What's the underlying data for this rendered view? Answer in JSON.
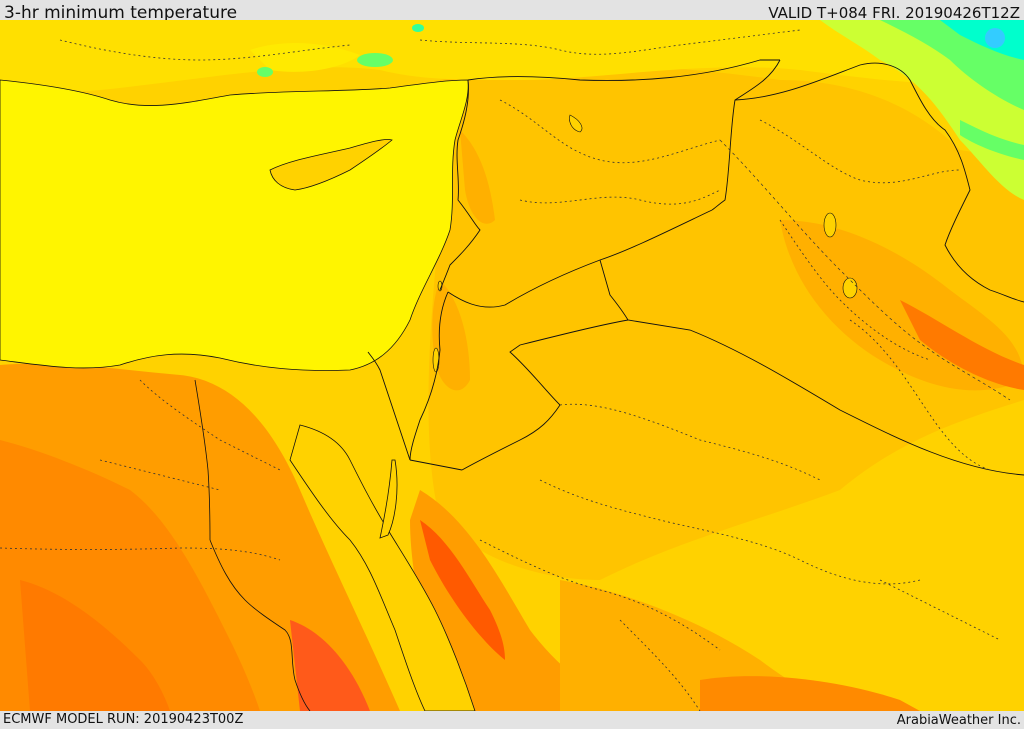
{
  "header": {
    "title": "3-hr minimum temperature",
    "valid": "VALID T+084 FRI. 20190426T12Z"
  },
  "footer": {
    "model_run": "ECMWF MODEL RUN: 20190423T00Z",
    "credit": "ArabiaWeather Inc."
  },
  "map": {
    "variable": "3-hr minimum temperature",
    "palette": {
      "sea": "#fff500",
      "cool_green": "#66ff66",
      "cyan": "#00ffcc",
      "light_green": "#ccff33",
      "yellow_orange": "#ffd700",
      "orange_light": "#ffc107",
      "orange": "#ff9d00",
      "orange_dark": "#ff7f00",
      "red_orange": "#ff5a00",
      "border": "#000000"
    }
  }
}
